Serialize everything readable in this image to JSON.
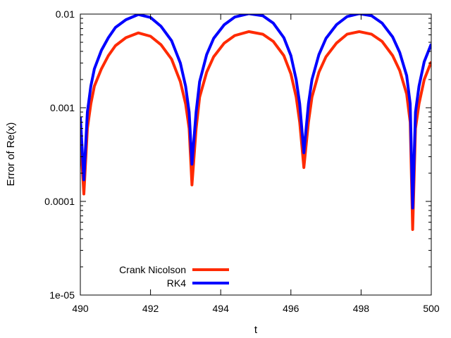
{
  "chart_data": {
    "type": "line",
    "title": "",
    "xlabel": "t",
    "ylabel": "Error of Re(x)",
    "xlim": [
      490,
      500
    ],
    "ylim": [
      1e-05,
      0.01
    ],
    "y_scale": "log",
    "grid": false,
    "legend_position": "bottom-left",
    "x_ticks": [
      {
        "value": 490,
        "label": "490"
      },
      {
        "value": 492,
        "label": "492"
      },
      {
        "value": 494,
        "label": "494"
      },
      {
        "value": 496,
        "label": "496"
      },
      {
        "value": 498,
        "label": "498"
      },
      {
        "value": 500,
        "label": "500"
      }
    ],
    "y_ticks": [
      {
        "value": 1e-05,
        "label": "1e-05"
      },
      {
        "value": 0.0001,
        "label": "0.0001"
      },
      {
        "value": 0.001,
        "label": "0.001"
      },
      {
        "value": 0.01,
        "label": "0.01"
      }
    ],
    "series": [
      {
        "name": "Crank Nicolson",
        "color": "#ff2a00",
        "x": [
          490.0,
          490.1,
          490.2,
          490.3,
          490.4,
          490.6,
          490.8,
          491.0,
          491.3,
          491.65,
          492.0,
          492.3,
          492.6,
          492.85,
          493.0,
          493.1,
          493.18,
          493.3,
          493.4,
          493.6,
          493.8,
          494.1,
          494.4,
          494.8,
          495.2,
          495.5,
          495.8,
          496.0,
          496.15,
          496.25,
          496.37,
          496.5,
          496.6,
          496.8,
          497.0,
          497.3,
          497.6,
          497.95,
          498.3,
          498.6,
          498.9,
          499.1,
          499.3,
          499.4,
          499.47,
          499.55,
          499.65,
          499.8,
          500.0
        ],
        "y": [
          0.0005,
          0.00012,
          0.0006,
          0.0011,
          0.0017,
          0.0026,
          0.0036,
          0.0046,
          0.0056,
          0.0063,
          0.0058,
          0.0047,
          0.0033,
          0.0019,
          0.0011,
          0.0006,
          0.00015,
          0.0006,
          0.0013,
          0.0024,
          0.0035,
          0.0049,
          0.0059,
          0.0065,
          0.0061,
          0.0051,
          0.0036,
          0.0023,
          0.0013,
          0.0007,
          0.00023,
          0.0007,
          0.0013,
          0.0024,
          0.0035,
          0.0049,
          0.0061,
          0.0065,
          0.0061,
          0.0051,
          0.0036,
          0.0025,
          0.0014,
          0.0007,
          5e-05,
          0.0006,
          0.0011,
          0.002,
          0.0031
        ]
      },
      {
        "name": "RK4",
        "color": "#0000ff",
        "x": [
          490.0,
          490.1,
          490.2,
          490.3,
          490.4,
          490.6,
          490.8,
          491.0,
          491.3,
          491.65,
          492.0,
          492.3,
          492.6,
          492.85,
          493.0,
          493.1,
          493.18,
          493.3,
          493.4,
          493.6,
          493.8,
          494.1,
          494.4,
          494.8,
          495.2,
          495.5,
          495.8,
          496.0,
          496.15,
          496.25,
          496.37,
          496.5,
          496.6,
          496.8,
          497.0,
          497.3,
          497.6,
          497.95,
          498.3,
          498.6,
          498.9,
          499.1,
          499.3,
          499.4,
          499.47,
          499.55,
          499.65,
          499.8,
          500.0
        ],
        "y": [
          0.0008,
          0.00017,
          0.0009,
          0.0017,
          0.0026,
          0.0041,
          0.0056,
          0.0072,
          0.0087,
          0.0099,
          0.0092,
          0.0074,
          0.0052,
          0.003,
          0.0017,
          0.0009,
          0.00025,
          0.0009,
          0.0019,
          0.0037,
          0.0055,
          0.0077,
          0.0093,
          0.0101,
          0.0096,
          0.008,
          0.0056,
          0.0036,
          0.002,
          0.0011,
          0.00033,
          0.0011,
          0.002,
          0.0037,
          0.0055,
          0.0077,
          0.0094,
          0.0101,
          0.0096,
          0.008,
          0.0057,
          0.0039,
          0.0022,
          0.0011,
          8.5e-05,
          0.0009,
          0.0017,
          0.0031,
          0.0048
        ]
      }
    ]
  }
}
